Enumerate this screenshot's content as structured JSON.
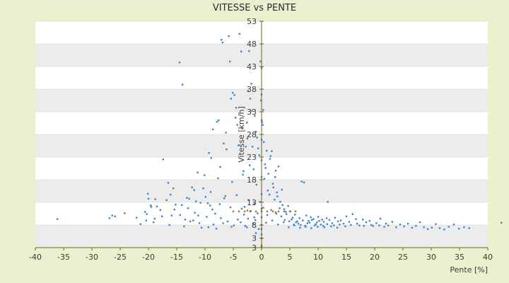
{
  "chart_data": {
    "type": "scatter",
    "title": "VITESSE vs PENTE",
    "xlabel": "Pente [%]",
    "ylabel": "Vitesse [km/h]",
    "xlim": [
      -40,
      40
    ],
    "ylim": [
      3,
      53
    ],
    "x_ticks": [
      "-40",
      "-35",
      "-30",
      "-25",
      "-20",
      "-15",
      "-10",
      "-5",
      "0",
      "5",
      "10",
      "15",
      "20",
      "25",
      "30",
      "35",
      "40"
    ],
    "y_ticks": [
      "3",
      "3",
      "8",
      "13",
      "18",
      "23",
      "28",
      "33",
      "38",
      "43",
      "48",
      "53"
    ],
    "grid": "horizontal bands",
    "legend": "none",
    "colors": {
      "point": "#3a87cf",
      "accent": "#a87a1e",
      "axis": "#6b6420",
      "band": "#ececec"
    },
    "series": [
      {
        "points": [
          [
            -36.1,
            9.3
          ],
          [
            -26.4,
            10.1
          ],
          [
            -25.9,
            9.9
          ],
          [
            -24.2,
            10.6
          ],
          [
            -20.6,
            10.9
          ],
          [
            -20.1,
            14.9
          ],
          [
            -20.0,
            13.8
          ],
          [
            -19.6,
            12.3
          ],
          [
            -19.1,
            8.6
          ],
          [
            -18.5,
            12.1
          ],
          [
            -17.4,
            22.5
          ],
          [
            -16.5,
            17.3
          ],
          [
            -16.1,
            14.7
          ],
          [
            -15.6,
            16.1
          ],
          [
            -15.2,
            12.5
          ],
          [
            -14.5,
            43.9
          ],
          [
            -14.0,
            39.0
          ],
          [
            -13.5,
            9.2
          ],
          [
            -12.8,
            13.8
          ],
          [
            -12.3,
            16.3
          ],
          [
            -11.8,
            10.7
          ],
          [
            -11.3,
            19.6
          ],
          [
            -10.8,
            12.9
          ],
          [
            -10.3,
            16.1
          ],
          [
            -9.9,
            14.2
          ],
          [
            -9.5,
            12.8
          ],
          [
            -9.3,
            23.9
          ],
          [
            -9.0,
            15.3
          ],
          [
            -8.6,
            29.1
          ],
          [
            -8.2,
            10.5
          ],
          [
            -7.9,
            30.8
          ],
          [
            -7.6,
            31.1
          ],
          [
            -7.3,
            20.8
          ],
          [
            -7.1,
            48.9
          ],
          [
            -6.9,
            48.3
          ],
          [
            -6.7,
            26.0
          ],
          [
            -6.4,
            14.4
          ],
          [
            -6.2,
            24.7
          ],
          [
            -5.8,
            49.7
          ],
          [
            -5.6,
            44.1
          ],
          [
            -5.4,
            35.9
          ],
          [
            -5.1,
            37.2
          ],
          [
            -4.8,
            36.7
          ],
          [
            -4.5,
            33.9
          ],
          [
            -4.3,
            30.1
          ],
          [
            -4.1,
            25.6
          ],
          [
            -3.9,
            50.2
          ],
          [
            -3.6,
            46.3
          ],
          [
            -3.4,
            29.3
          ],
          [
            -3.2,
            19.9
          ],
          [
            -3.0,
            12.0
          ],
          [
            -2.8,
            25.3
          ],
          [
            -2.6,
            30.6
          ],
          [
            -2.5,
            27.1
          ],
          [
            -2.2,
            46.4
          ],
          [
            -2.0,
            35.9
          ],
          [
            -1.8,
            39.2
          ],
          [
            -1.6,
            25.3
          ],
          [
            -1.4,
            20.3
          ],
          [
            -1.2,
            32.1
          ],
          [
            -1.0,
            28.6
          ],
          [
            -0.8,
            27.3
          ],
          [
            -0.6,
            24.9
          ],
          [
            -0.4,
            23.4
          ],
          [
            -0.2,
            44.1
          ],
          [
            0.0,
            42.7
          ],
          [
            0.2,
            30.1
          ],
          [
            0.4,
            26.3
          ],
          [
            0.6,
            21.4
          ],
          [
            0.9,
            24.4
          ],
          [
            1.2,
            19.3
          ],
          [
            1.5,
            22.6
          ],
          [
            1.8,
            24.3
          ],
          [
            2.1,
            16.3
          ],
          [
            2.4,
            18.6
          ],
          [
            2.7,
            15.2
          ],
          [
            3.0,
            20.9
          ],
          [
            3.3,
            13.1
          ],
          [
            3.7,
            12.4
          ],
          [
            4.0,
            11.5
          ],
          [
            4.3,
            10.9
          ],
          [
            4.7,
            12.2
          ],
          [
            5.1,
            11.0
          ],
          [
            5.5,
            9.6
          ],
          [
            5.9,
            10.3
          ],
          [
            6.3,
            8.8
          ],
          [
            6.7,
            9.5
          ],
          [
            7.1,
            17.6
          ],
          [
            7.5,
            17.4
          ],
          [
            7.9,
            10.1
          ],
          [
            8.3,
            8.9
          ],
          [
            8.7,
            9.7
          ],
          [
            9.2,
            9.3
          ],
          [
            9.6,
            8.2
          ],
          [
            10.0,
            9.8
          ],
          [
            10.5,
            8.1
          ],
          [
            11.0,
            8.7
          ],
          [
            11.5,
            9.5
          ],
          [
            12.0,
            9.1
          ],
          [
            11.7,
            13.1
          ],
          [
            12.5,
            8.4
          ],
          [
            13.0,
            9.6
          ],
          [
            13.5,
            8.8
          ],
          [
            14.0,
            9.0
          ],
          [
            14.5,
            8.3
          ],
          [
            15.0,
            9.9
          ],
          [
            15.5,
            8.7
          ],
          [
            16.1,
            10.4
          ],
          [
            16.7,
            9.3
          ],
          [
            17.3,
            7.9
          ],
          [
            17.9,
            9.2
          ],
          [
            18.5,
            8.6
          ],
          [
            19.1,
            8.9
          ],
          [
            19.7,
            7.8
          ],
          [
            20.3,
            8.4
          ],
          [
            21.0,
            9.4
          ],
          [
            21.7,
            7.6
          ],
          [
            22.4,
            7.9
          ],
          [
            23.1,
            8.7
          ],
          [
            23.8,
            7.5
          ],
          [
            24.5,
            8.1
          ],
          [
            25.2,
            7.7
          ],
          [
            25.9,
            8.3
          ],
          [
            26.6,
            7.4
          ],
          [
            27.3,
            7.8
          ],
          [
            28.0,
            8.6
          ],
          [
            28.7,
            7.5
          ],
          [
            29.4,
            7.1
          ],
          [
            30.1,
            7.4
          ],
          [
            30.8,
            8.2
          ],
          [
            31.5,
            7.3
          ],
          [
            32.3,
            7.0
          ],
          [
            33.1,
            7.6
          ],
          [
            34.0,
            8.1
          ],
          [
            34.9,
            7.2
          ],
          [
            35.8,
            7.5
          ],
          [
            36.7,
            7.3
          ],
          [
            42.4,
            8.5
          ],
          [
            -20.3,
            10.4
          ],
          [
            -18.9,
            9.4
          ],
          [
            -17.6,
            9.9
          ],
          [
            -15.4,
            11.4
          ],
          [
            -14.4,
            10.2
          ],
          [
            -12.1,
            9.0
          ],
          [
            -11.0,
            8.4
          ],
          [
            -9.7,
            9.8
          ],
          [
            -8.5,
            8.1
          ],
          [
            -7.2,
            9.5
          ],
          [
            -6.0,
            8.8
          ],
          [
            -4.9,
            7.9
          ],
          [
            -3.7,
            8.6
          ],
          [
            -2.6,
            7.5
          ],
          [
            -1.5,
            8.3
          ],
          [
            -0.5,
            7.1
          ],
          [
            -13.7,
            7.7
          ],
          [
            -10.6,
            7.4
          ],
          [
            -8.0,
            7.2
          ],
          [
            -5.3,
            7.6
          ],
          [
            -2.9,
            7.8
          ],
          [
            -1.1,
            9.1
          ],
          [
            -19.5,
            12.0
          ],
          [
            -16.8,
            13.5
          ],
          [
            -13.2,
            14.0
          ],
          [
            -11.6,
            13.2
          ],
          [
            -9.1,
            12.3
          ],
          [
            -6.6,
            13.9
          ],
          [
            -4.4,
            14.6
          ],
          [
            -2.3,
            13.5
          ],
          [
            -1.3,
            12.7
          ],
          [
            -0.3,
            13.1
          ],
          [
            -7.7,
            18.3
          ],
          [
            -5.2,
            17.5
          ],
          [
            -3.3,
            19.1
          ],
          [
            -2.1,
            21.2
          ],
          [
            -0.9,
            16.9
          ],
          [
            0.5,
            18.2
          ],
          [
            1.4,
            14.7
          ],
          [
            2.3,
            13.6
          ],
          [
            3.2,
            11.7
          ],
          [
            4.4,
            10.4
          ],
          [
            5.3,
            9.2
          ],
          [
            6.1,
            8.6
          ],
          [
            6.9,
            8.0
          ],
          [
            7.7,
            7.8
          ],
          [
            8.5,
            8.5
          ],
          [
            9.4,
            7.9
          ],
          [
            10.2,
            8.9
          ],
          [
            10.9,
            7.8
          ],
          [
            11.6,
            8.2
          ],
          [
            12.8,
            7.9
          ],
          [
            13.8,
            8.1
          ],
          [
            14.8,
            7.7
          ],
          [
            15.8,
            8.0
          ],
          [
            16.9,
            8.3
          ],
          [
            18.1,
            7.8
          ],
          [
            19.4,
            8.0
          ],
          [
            20.8,
            7.9
          ],
          [
            22.0,
            8.3
          ],
          [
            -26.9,
            9.5
          ],
          [
            -21.4,
            8.2
          ],
          [
            -16.3,
            8.0
          ],
          [
            -12.6,
            8.8
          ],
          [
            -9.4,
            7.5
          ],
          [
            -6.8,
            8.4
          ],
          [
            -4.2,
            9.2
          ],
          [
            -3.1,
            10.3
          ],
          [
            -1.9,
            11.1
          ],
          [
            -0.7,
            10.6
          ],
          [
            0.3,
            11.8
          ],
          [
            1.0,
            10.2
          ],
          [
            1.7,
            11.3
          ],
          [
            2.6,
            10.5
          ],
          [
            3.5,
            9.9
          ],
          [
            4.1,
            9.1
          ],
          [
            4.9,
            8.8
          ],
          [
            5.7,
            8.1
          ],
          [
            6.5,
            8.3
          ],
          [
            7.3,
            9.0
          ],
          [
            8.1,
            8.4
          ],
          [
            8.9,
            9.1
          ],
          [
            9.8,
            8.6
          ],
          [
            10.7,
            9.2
          ],
          [
            1.1,
            15.6
          ],
          [
            2.0,
            17.1
          ],
          [
            2.8,
            14.3
          ],
          [
            3.6,
            15.8
          ],
          [
            0.7,
            20.6
          ],
          [
            1.6,
            23.2
          ],
          [
            2.5,
            20.0
          ],
          [
            -0.1,
            35.5
          ],
          [
            0.1,
            30.7
          ],
          [
            0.3,
            33.4
          ],
          [
            -1.7,
            33.2
          ],
          [
            -2.4,
            37.6
          ],
          [
            -4.6,
            31.7
          ],
          [
            -6.3,
            28.4
          ],
          [
            -8.9,
            22.8
          ],
          [
            -10.1,
            19.0
          ],
          [
            -11.9,
            15.7
          ],
          [
            -14.1,
            12.4
          ],
          [
            -15.9,
            10.1
          ],
          [
            -17.9,
            11.3
          ],
          [
            -18.8,
            13.7
          ],
          [
            -20.4,
            9.0
          ],
          [
            -22.1,
            9.6
          ],
          [
            -13.0,
            11.7
          ],
          [
            -11.2,
            10.1
          ],
          [
            -8.7,
            11.4
          ],
          [
            -7.4,
            12.6
          ],
          [
            -5.5,
            11.9
          ],
          [
            -3.5,
            11.6
          ],
          [
            -2.4,
            9.4
          ],
          [
            -1.3,
            9.7
          ],
          [
            0.8,
            8.5
          ],
          [
            1.9,
            9.0
          ],
          [
            2.9,
            8.1
          ],
          [
            3.9,
            8.6
          ],
          [
            4.8,
            7.5
          ],
          [
            5.8,
            7.9
          ],
          [
            6.8,
            7.4
          ],
          [
            7.8,
            7.6
          ],
          [
            8.8,
            7.3
          ],
          [
            9.9,
            7.6
          ],
          [
            11.1,
            7.5
          ],
          [
            12.3,
            7.7
          ],
          [
            13.4,
            7.4
          ],
          [
            0.0,
            3.2
          ],
          [
            0.0,
            5.9
          ],
          [
            0.0,
            7.1
          ],
          [
            0.0,
            9.7
          ],
          [
            0.0,
            11.6
          ],
          [
            0.0,
            14.8
          ],
          [
            0.0,
            18.6
          ],
          [
            0.0,
            22.3
          ],
          [
            0.0,
            26.8
          ],
          [
            0.0,
            31.1
          ],
          [
            0.0,
            36.8
          ],
          [
            -1.0,
            6.2
          ]
        ]
      },
      {
        "name": "",
        "points": [
          [
            -5.0,
            11.0
          ],
          [
            -4.0,
            11.0
          ],
          [
            -3.0,
            11.0
          ],
          [
            -2.0,
            11.0
          ],
          [
            -1.0,
            11.0
          ],
          [
            0.0,
            11.0
          ],
          [
            1.0,
            11.0
          ],
          [
            2.0,
            11.0
          ],
          [
            3.0,
            11.0
          ],
          [
            4.0,
            11.0
          ],
          [
            5.0,
            11.0
          ],
          [
            6.0,
            11.0
          ],
          [
            -0.0,
            8.0
          ],
          [
            0.0,
            5.0
          ],
          [
            0.0,
            3.5
          ],
          [
            -2.5,
            11.2
          ],
          [
            2.5,
            10.8
          ]
        ]
      }
    ]
  }
}
